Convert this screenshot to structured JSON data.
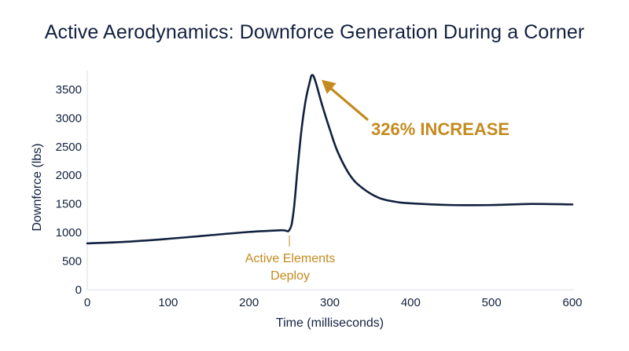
{
  "chart_data": {
    "type": "line",
    "title": "Active Aerodynamics: Downforce Generation During a Corner",
    "xlabel": "Time (milliseconds)",
    "ylabel": "Downforce (lbs)",
    "xlim": [
      0,
      600
    ],
    "ylim": [
      0,
      3800
    ],
    "x_ticks": [
      "0",
      "100",
      "200",
      "300",
      "400",
      "500",
      "600"
    ],
    "y_ticks": [
      "0",
      "500",
      "1000",
      "1500",
      "2000",
      "2500",
      "3000",
      "3500"
    ],
    "grid": false,
    "line_color": "#12213f",
    "annotation_color": "#c48a1e",
    "series": [
      {
        "points": [
          [
            0,
            810
          ],
          [
            50,
            840
          ],
          [
            100,
            890
          ],
          [
            150,
            950
          ],
          [
            200,
            1010
          ],
          [
            240,
            1040
          ],
          [
            250,
            1045
          ],
          [
            255,
            1350
          ],
          [
            260,
            2100
          ],
          [
            265,
            2800
          ],
          [
            270,
            3300
          ],
          [
            275,
            3620
          ],
          [
            278,
            3750
          ],
          [
            282,
            3650
          ],
          [
            290,
            3250
          ],
          [
            300,
            2800
          ],
          [
            310,
            2400
          ],
          [
            325,
            2000
          ],
          [
            340,
            1780
          ],
          [
            360,
            1610
          ],
          [
            380,
            1540
          ],
          [
            400,
            1510
          ],
          [
            450,
            1480
          ],
          [
            500,
            1480
          ],
          [
            550,
            1500
          ],
          [
            600,
            1490
          ]
        ]
      }
    ],
    "annotations": {
      "deploy_label_line1": "Active Elements",
      "deploy_label_line2": "Deploy",
      "deploy_x": 250,
      "peak_label": "326% INCREASE",
      "peak_x": 278,
      "peak_y": 3750
    }
  }
}
